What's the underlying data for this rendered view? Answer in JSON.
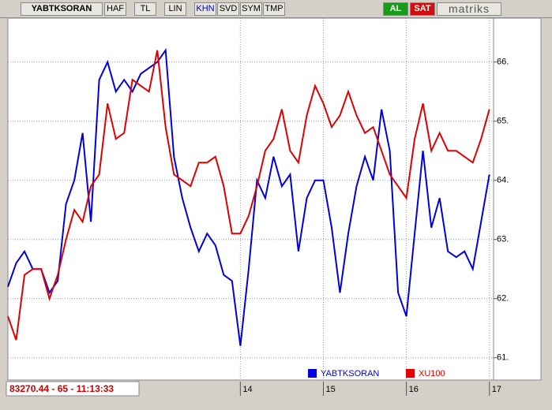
{
  "toolbar": {
    "symbol": "YABTKSORAN",
    "buttons": [
      "HAF",
      "TL",
      "LIN",
      "KHN",
      "SVD",
      "SYM",
      "TMP"
    ],
    "buy": "AL",
    "sell": "SAT",
    "brand": "matriks"
  },
  "status": "83270.44 - 65 - 11:13:33",
  "chart_data": {
    "type": "line",
    "grid": true,
    "legend": "bottom",
    "x": [
      11.2,
      11.3,
      11.4,
      11.5,
      11.6,
      11.7,
      11.8,
      11.9,
      12.0,
      12.1,
      12.2,
      12.3,
      12.4,
      12.5,
      12.6,
      12.7,
      12.8,
      12.9,
      13.0,
      13.1,
      13.2,
      13.3,
      13.4,
      13.5,
      13.6,
      13.7,
      13.8,
      13.9,
      14.0,
      14.1,
      14.2,
      14.3,
      14.4,
      14.5,
      14.6,
      14.7,
      14.8,
      14.9,
      15.0,
      15.1,
      15.2,
      15.3,
      15.4,
      15.5,
      15.6,
      15.7,
      15.8,
      15.9,
      16.0,
      16.1,
      16.2,
      16.3,
      16.4,
      16.5,
      16.6,
      16.7,
      16.8,
      16.9,
      17.0
    ],
    "xlim": [
      11.2,
      17.05
    ],
    "xticks": [
      14,
      15,
      16,
      17
    ],
    "ylim": [
      60.65,
      66.85
    ],
    "yticks": [
      {
        "value": 61,
        "label": "61."
      },
      {
        "value": 62,
        "label": "62."
      },
      {
        "value": 63,
        "label": "63."
      },
      {
        "value": 64,
        "label": "64."
      },
      {
        "value": 65,
        "label": "65."
      },
      {
        "value": 66,
        "label": "66."
      }
    ],
    "series": [
      {
        "name": "YABTKSORAN",
        "color": "#0000e0",
        "values": [
          62.2,
          62.6,
          62.8,
          62.5,
          62.5,
          62.1,
          62.3,
          63.6,
          64.0,
          64.8,
          63.3,
          65.7,
          66.0,
          65.5,
          65.7,
          65.5,
          65.8,
          65.9,
          66.0,
          66.2,
          64.4,
          63.7,
          63.2,
          62.8,
          63.1,
          62.9,
          62.4,
          62.3,
          61.2,
          62.5,
          64.0,
          63.7,
          64.4,
          63.9,
          64.1,
          62.8,
          63.7,
          64.0,
          64.0,
          63.2,
          62.1,
          63.1,
          63.9,
          64.4,
          64.0,
          65.2,
          64.5,
          62.1,
          61.7,
          63.1,
          64.5,
          63.2,
          63.7,
          62.8,
          62.7,
          62.8,
          62.5,
          63.3,
          64.1
        ]
      },
      {
        "name": "XU100",
        "color": "#e00000",
        "values": [
          61.7,
          61.3,
          62.4,
          62.5,
          62.5,
          62.0,
          62.4,
          63.0,
          63.5,
          63.3,
          63.9,
          64.1,
          65.3,
          64.7,
          64.8,
          65.7,
          65.6,
          65.5,
          66.2,
          64.9,
          64.1,
          64.0,
          63.9,
          64.3,
          64.3,
          64.4,
          63.9,
          63.1,
          63.1,
          63.4,
          63.9,
          64.5,
          64.7,
          65.2,
          64.5,
          64.3,
          65.1,
          65.6,
          65.3,
          64.9,
          65.1,
          65.5,
          65.1,
          64.8,
          64.9,
          64.5,
          64.1,
          63.9,
          63.7,
          64.7,
          65.3,
          64.5,
          64.8,
          64.5,
          64.5,
          64.4,
          64.3,
          64.7,
          65.2
        ]
      }
    ]
  }
}
